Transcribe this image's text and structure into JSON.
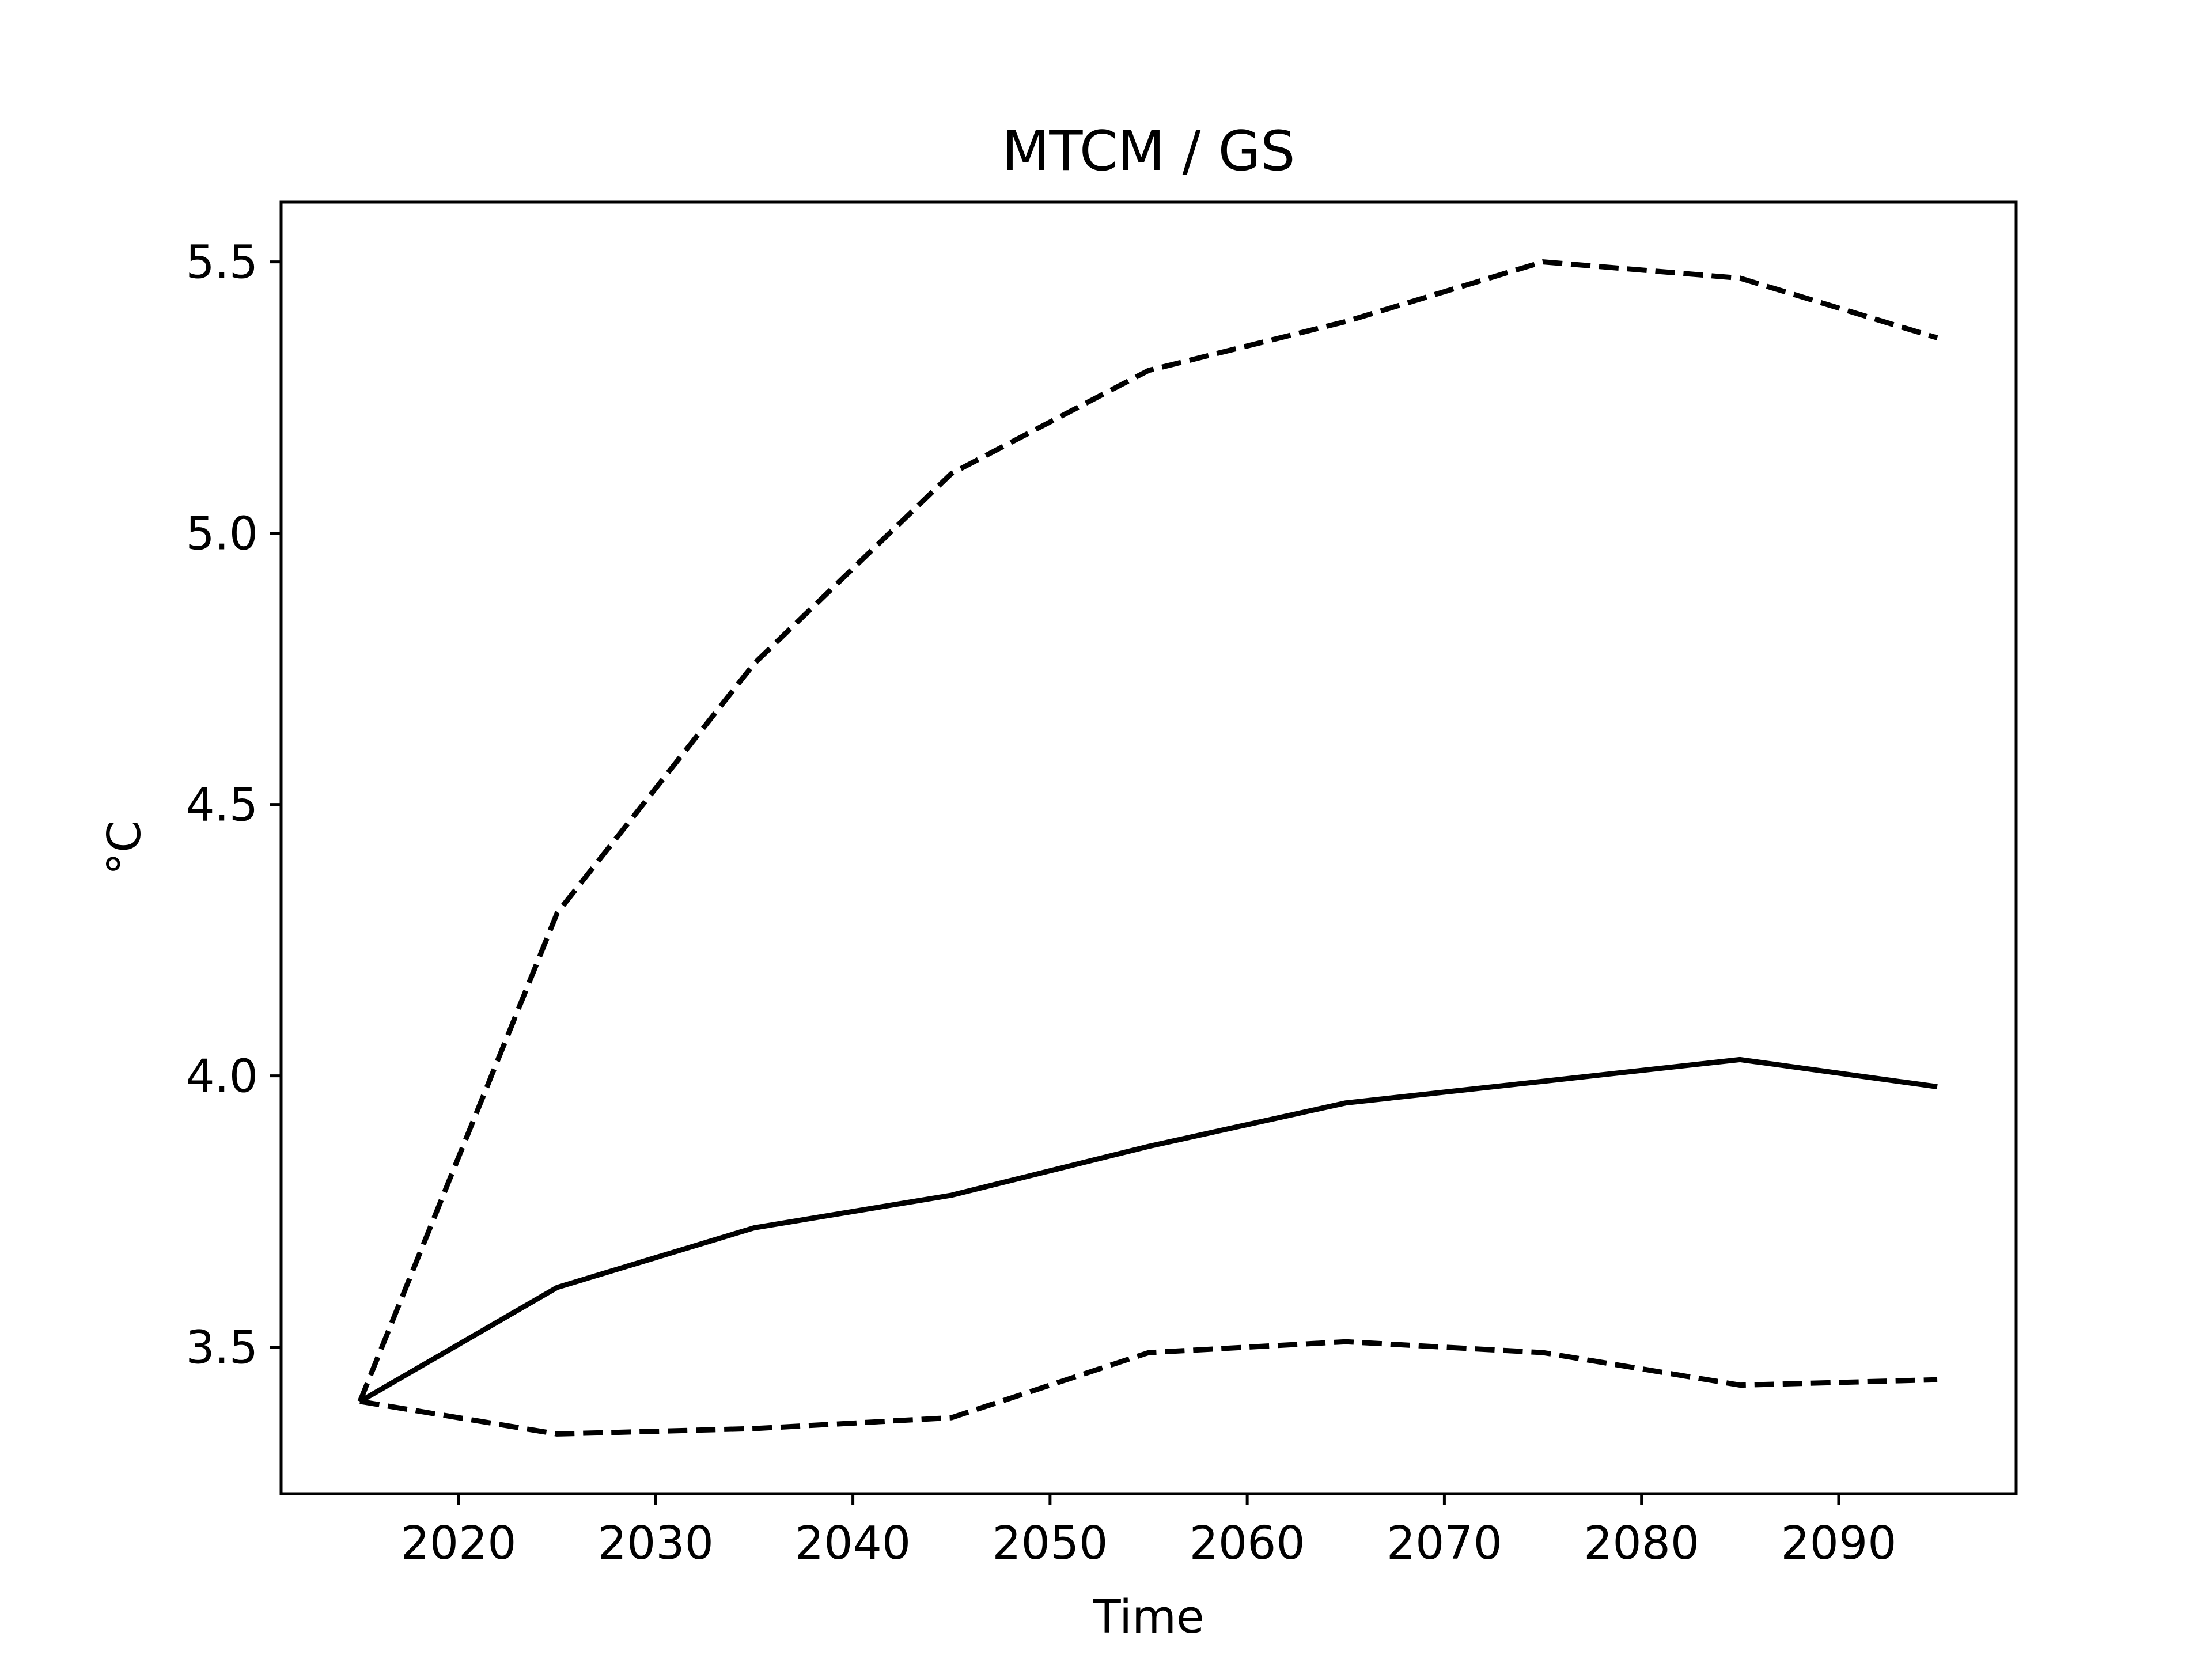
{
  "chart_data": {
    "type": "line",
    "title": "MTCM / GS",
    "xlabel": "Time",
    "ylabel": "°C",
    "x": [
      2015,
      2025,
      2035,
      2045,
      2055,
      2065,
      2075,
      2085,
      2095
    ],
    "xlim": [
      2011,
      2099
    ],
    "ylim": [
      3.23,
      5.61
    ],
    "xticks": [
      2020,
      2030,
      2040,
      2050,
      2060,
      2070,
      2080,
      2090
    ],
    "xtick_labels": [
      "2020",
      "2030",
      "2040",
      "2050",
      "2060",
      "2070",
      "2080",
      "2090"
    ],
    "yticks": [
      3.5,
      4.0,
      4.5,
      5.0,
      5.5
    ],
    "ytick_labels": [
      "3.5",
      "4.0",
      "4.5",
      "5.0",
      "5.5"
    ],
    "grid": false,
    "series": [
      {
        "style": "dashed",
        "color": "#000000",
        "values": [
          3.4,
          4.3,
          4.76,
          5.11,
          5.3,
          5.39,
          5.5,
          5.47,
          5.36
        ]
      },
      {
        "style": "solid",
        "color": "#000000",
        "values": [
          3.4,
          3.61,
          3.72,
          3.78,
          3.87,
          3.95,
          3.99,
          4.03,
          3.98
        ]
      },
      {
        "style": "dashed",
        "color": "#000000",
        "values": [
          3.4,
          3.34,
          3.35,
          3.37,
          3.49,
          3.51,
          3.49,
          3.43,
          3.44
        ]
      }
    ]
  }
}
